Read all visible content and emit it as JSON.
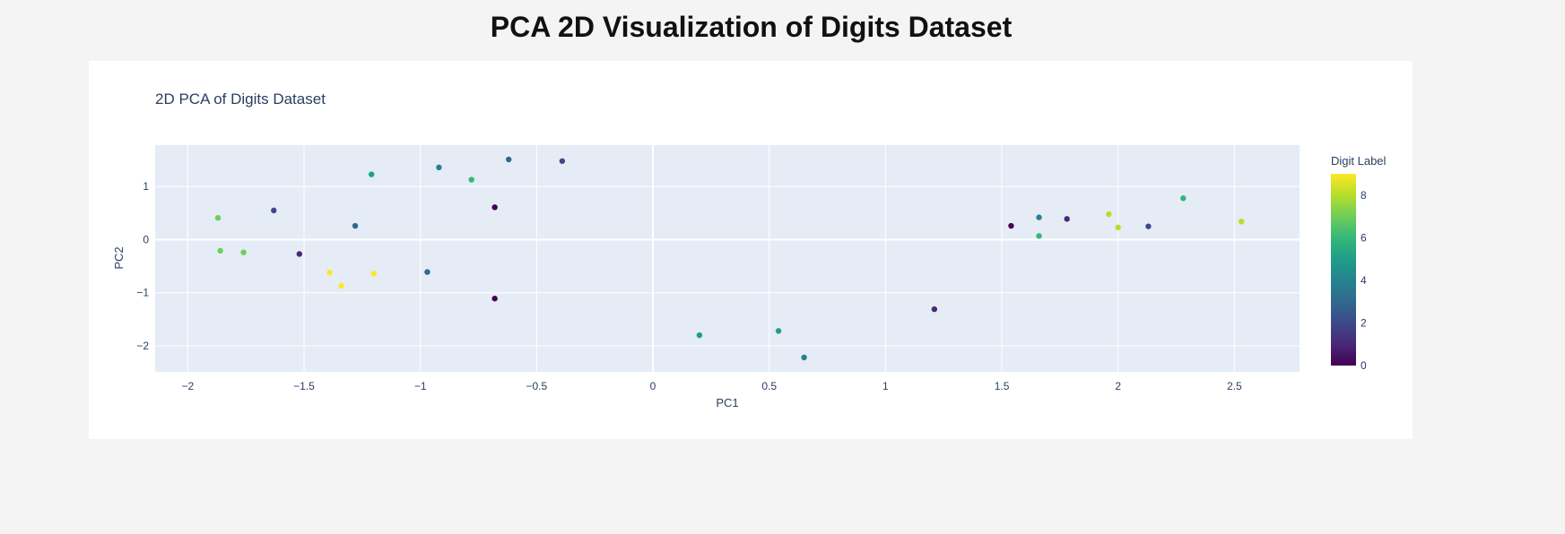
{
  "page": {
    "heading": "PCA 2D Visualization of Digits Dataset"
  },
  "chart_data": {
    "type": "scatter",
    "title": "2D PCA of Digits Dataset",
    "xlabel": "PC1",
    "ylabel": "PC2",
    "xlim": [
      -2.14,
      2.78
    ],
    "ylim": [
      -2.49,
      1.78
    ],
    "x_ticks": [
      {
        "value": -2,
        "label": "−2"
      },
      {
        "value": -1.5,
        "label": "−1.5"
      },
      {
        "value": -1,
        "label": "−1"
      },
      {
        "value": -0.5,
        "label": "−0.5"
      },
      {
        "value": 0,
        "label": "0"
      },
      {
        "value": 0.5,
        "label": "0.5"
      },
      {
        "value": 1,
        "label": "1"
      },
      {
        "value": 1.5,
        "label": "1.5"
      },
      {
        "value": 2,
        "label": "2"
      },
      {
        "value": 2.5,
        "label": "2.5"
      }
    ],
    "y_ticks": [
      {
        "value": 1,
        "label": "1"
      },
      {
        "value": 0,
        "label": "0"
      },
      {
        "value": -1,
        "label": "−1"
      },
      {
        "value": -2,
        "label": "−2"
      }
    ],
    "grid": true,
    "colorbar": {
      "title": "Digit Label",
      "colorscale": "Viridis",
      "range": [
        0,
        9
      ],
      "ticks": [
        {
          "value": 8,
          "label": "8"
        },
        {
          "value": 6,
          "label": "6"
        },
        {
          "value": 4,
          "label": "4"
        },
        {
          "value": 2,
          "label": "2"
        },
        {
          "value": 0,
          "label": "0"
        }
      ]
    },
    "points": [
      {
        "x": -1.87,
        "y": 0.41,
        "label": 7
      },
      {
        "x": -1.86,
        "y": -0.21,
        "label": 7
      },
      {
        "x": -1.76,
        "y": -0.24,
        "label": 7
      },
      {
        "x": -1.63,
        "y": 0.55,
        "label": 2
      },
      {
        "x": -1.52,
        "y": -0.27,
        "label": 1
      },
      {
        "x": -1.39,
        "y": -0.62,
        "label": 9
      },
      {
        "x": -1.34,
        "y": -0.87,
        "label": 9
      },
      {
        "x": -1.28,
        "y": 0.26,
        "label": 3
      },
      {
        "x": -1.21,
        "y": 1.23,
        "label": 5
      },
      {
        "x": -1.2,
        "y": -0.64,
        "label": 9
      },
      {
        "x": -0.97,
        "y": -0.61,
        "label": 3
      },
      {
        "x": -0.92,
        "y": 1.36,
        "label": 4
      },
      {
        "x": -0.78,
        "y": 1.13,
        "label": 6
      },
      {
        "x": -0.68,
        "y": 0.61,
        "label": 0
      },
      {
        "x": -0.68,
        "y": -1.11,
        "label": 0
      },
      {
        "x": -0.62,
        "y": 1.51,
        "label": 3
      },
      {
        "x": -0.39,
        "y": 1.48,
        "label": 2
      },
      {
        "x": 0.2,
        "y": -1.8,
        "label": 5
      },
      {
        "x": 0.54,
        "y": -1.72,
        "label": 5
      },
      {
        "x": 0.65,
        "y": -2.22,
        "label": 4
      },
      {
        "x": 1.21,
        "y": -1.31,
        "label": 1
      },
      {
        "x": 1.54,
        "y": 0.26,
        "label": 0
      },
      {
        "x": 1.66,
        "y": 0.42,
        "label": 4
      },
      {
        "x": 1.66,
        "y": 0.07,
        "label": 6
      },
      {
        "x": 1.78,
        "y": 0.39,
        "label": 1
      },
      {
        "x": 1.96,
        "y": 0.48,
        "label": 8
      },
      {
        "x": 2.0,
        "y": 0.23,
        "label": 8
      },
      {
        "x": 2.13,
        "y": 0.25,
        "label": 2
      },
      {
        "x": 2.28,
        "y": 0.78,
        "label": 6
      },
      {
        "x": 2.53,
        "y": 0.34,
        "label": 8
      }
    ]
  }
}
